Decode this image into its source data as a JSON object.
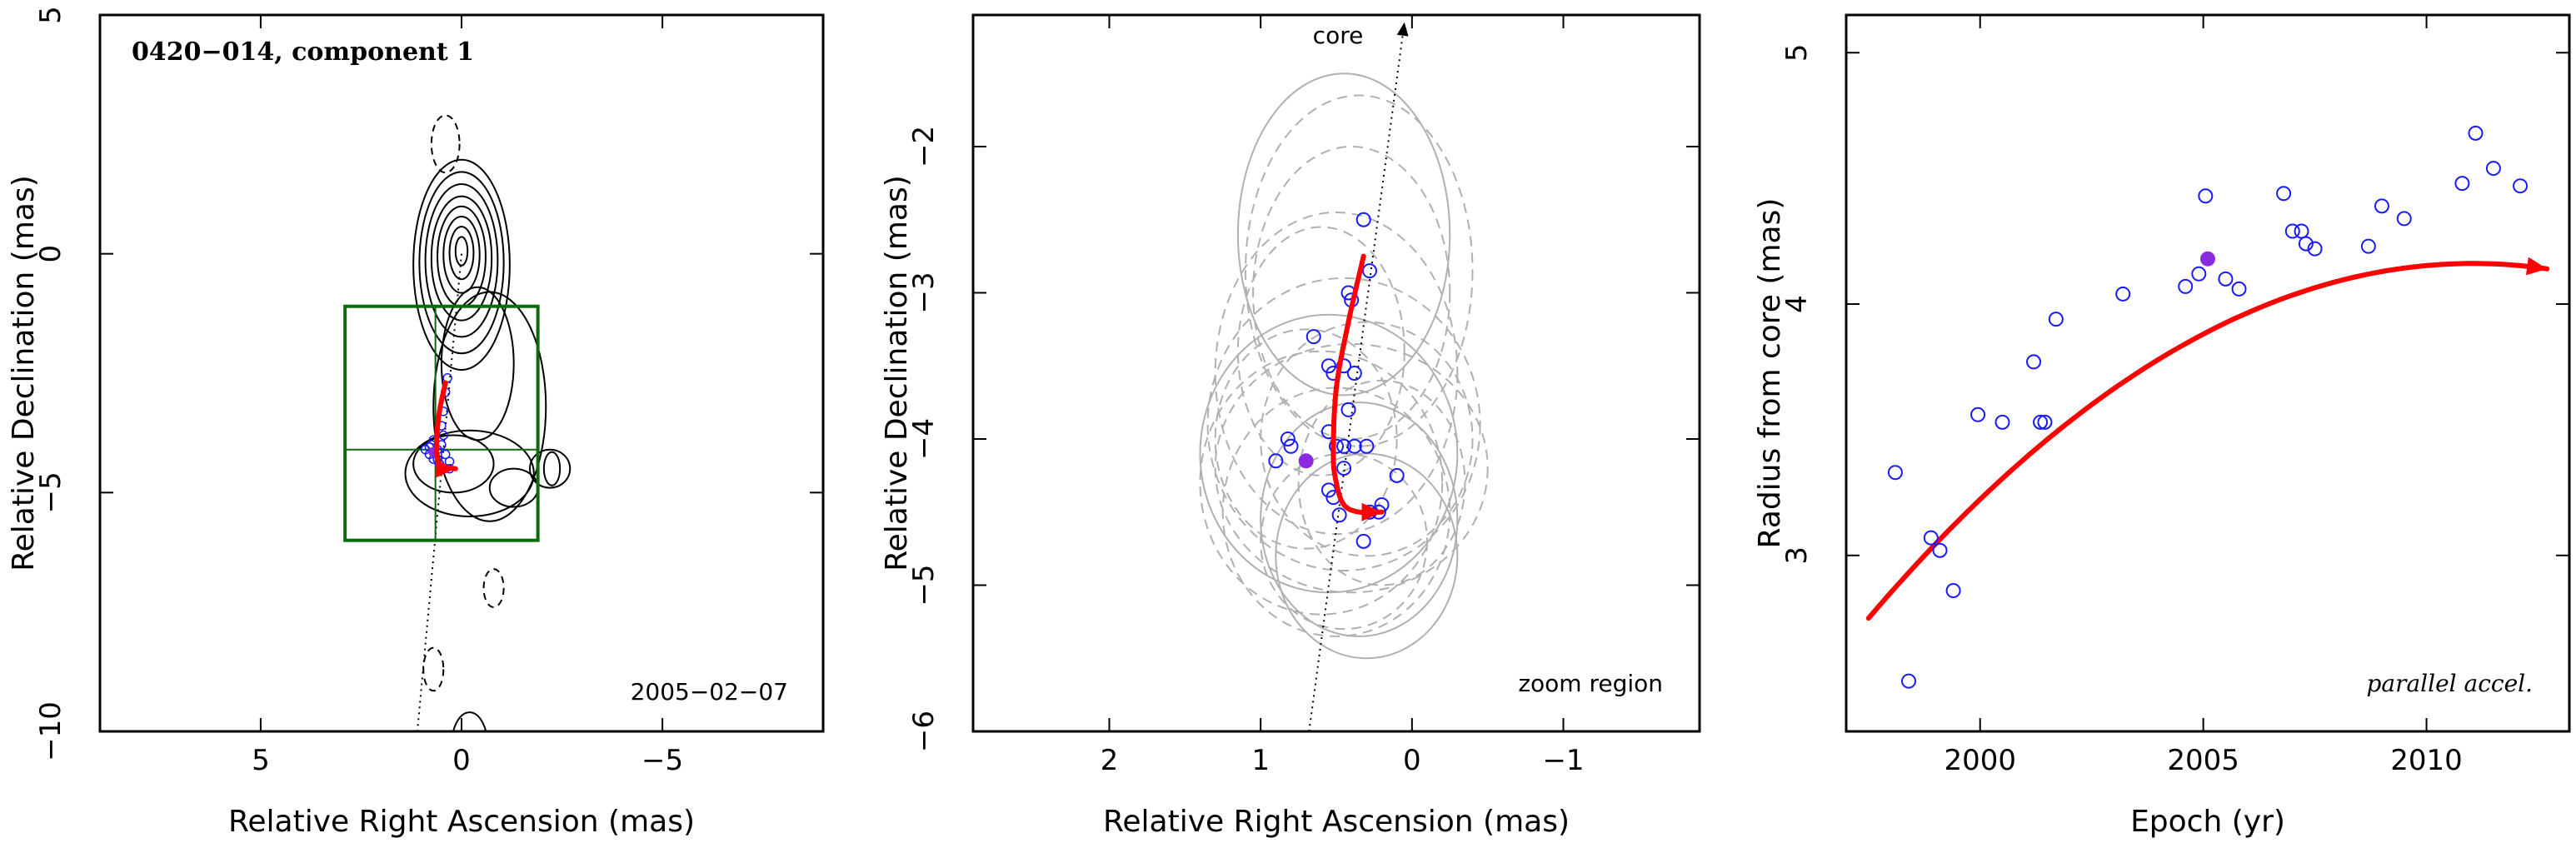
{
  "chart_data": [
    {
      "type": "scatter",
      "title": "0420−014, component 1",
      "annotation": "2005−02−07",
      "xlabel": "Relative Right Ascension (mas)",
      "ylabel": "Relative Declination (mas)",
      "xlim": [
        9,
        -9
      ],
      "ylim": [
        -10,
        5
      ],
      "xticks": [
        5,
        0,
        -5
      ],
      "xtick_labels": [
        "5",
        "0",
        "−5"
      ],
      "yticks": [
        -10,
        -5,
        0,
        5
      ],
      "ytick_labels": [
        "−10",
        "−5",
        "0",
        "5"
      ],
      "contour_center": [
        0.0,
        0.1
      ],
      "contour_levels": [
        {
          "rx": 0.15,
          "ry": 0.3
        },
        {
          "rx": 0.3,
          "ry": 0.55
        },
        {
          "rx": 0.45,
          "ry": 0.8
        },
        {
          "rx": 0.6,
          "ry": 1.05
        },
        {
          "rx": 0.75,
          "ry": 1.3
        },
        {
          "rx": 0.9,
          "ry": 1.6
        },
        {
          "rx": 1.05,
          "ry": 1.9
        },
        {
          "rx": 1.2,
          "ry": 2.2
        }
      ],
      "jet_contours": [
        {
          "cx": -0.4,
          "cy": -2.3,
          "rx": 0.9,
          "ry": 1.6
        },
        {
          "cx": -0.7,
          "cy": -3.2,
          "rx": 1.4,
          "ry": 2.4
        }
      ],
      "lower_contours": [
        {
          "cx": -0.2,
          "cy": -4.6,
          "rx": 1.6,
          "ry": 0.9
        },
        {
          "cx": 0.2,
          "cy": -4.4,
          "rx": 1.0,
          "ry": 0.6
        },
        {
          "cx": -1.3,
          "cy": -4.9,
          "rx": 0.6,
          "ry": 0.4
        },
        {
          "cx": -2.2,
          "cy": -4.5,
          "rx": 0.5,
          "ry": 0.4
        },
        {
          "cx": -2.25,
          "cy": -4.5,
          "rx": 0.2,
          "ry": 0.35
        }
      ],
      "negative_contours": [
        {
          "cx": 0.4,
          "cy": 2.3,
          "rx": 0.35,
          "ry": 0.6
        },
        {
          "cx": -0.8,
          "cy": -7.0,
          "rx": 0.25,
          "ry": 0.4
        },
        {
          "cx": 0.7,
          "cy": -8.7,
          "rx": 0.25,
          "ry": 0.45
        }
      ],
      "positive_edge_contour": {
        "cx": -0.2,
        "cy": -10.3,
        "rx": 0.45,
        "ry": 0.7
      },
      "zoom_box": {
        "x": [
          2.9,
          -1.9
        ],
        "y": [
          -6.0,
          -1.1
        ],
        "cross_x": 0.65,
        "cross_y": -4.1
      },
      "core_line": [
        [
          0.0,
          0.0
        ],
        [
          1.1,
          -10.0
        ]
      ],
      "points_x": [
        0.9,
        0.8,
        0.75,
        0.7,
        0.6,
        0.55,
        0.5,
        0.45,
        0.4,
        0.35,
        0.3,
        0.5,
        0.6,
        0.7,
        0.4,
        0.3,
        0.8,
        0.45
      ],
      "points_y": [
        -4.1,
        -4.2,
        -4.0,
        -4.3,
        -4.1,
        -4.4,
        -3.6,
        -3.3,
        -2.9,
        -2.6,
        -4.5,
        -4.0,
        -4.3,
        -3.9,
        -4.2,
        -4.35,
        -4.05,
        -3.8
      ],
      "highlight_point": [
        0.7,
        -4.15
      ],
      "track": [
        [
          0.4,
          -2.7
        ],
        [
          0.55,
          -3.3
        ],
        [
          0.62,
          -3.9
        ],
        [
          0.6,
          -4.3
        ],
        [
          0.45,
          -4.45
        ],
        [
          0.15,
          -4.5
        ]
      ],
      "colors": {
        "track": "#ff0000",
        "points": "#1a1aff",
        "highlight": "#8a2be2",
        "box": "#0a6b0a"
      }
    },
    {
      "type": "scatter",
      "annotation_top": "core",
      "annotation": "zoom region",
      "xlabel": "Relative Right Ascension (mas)",
      "ylabel": "Relative Declination (mas)",
      "xlim": [
        2.9,
        -1.9
      ],
      "ylim": [
        -6.0,
        -1.1
      ],
      "xticks": [
        2,
        1,
        0,
        -1
      ],
      "xtick_labels": [
        "2",
        "1",
        "0",
        "−1"
      ],
      "yticks": [
        -6,
        -5,
        -4,
        -3,
        -2
      ],
      "ytick_labels": [
        "−6",
        "−5",
        "−4",
        "−3",
        "−2"
      ],
      "core_line": [
        [
          0.68,
          -6.0
        ],
        [
          0.05,
          -1.15
        ]
      ],
      "error_ellipses": [
        {
          "cx": 0.45,
          "cy": -2.6,
          "rx": 0.7,
          "ry": 1.1
        },
        {
          "cx": 0.4,
          "cy": -3.0,
          "rx": 0.65,
          "ry": 1.0
        },
        {
          "cx": 0.35,
          "cy": -2.85,
          "rx": 0.75,
          "ry": 1.2
        },
        {
          "cx": 0.5,
          "cy": -3.55,
          "rx": 0.8,
          "ry": 1.1
        },
        {
          "cx": 0.45,
          "cy": -3.9,
          "rx": 0.9,
          "ry": 1.0
        },
        {
          "cx": 0.55,
          "cy": -4.1,
          "rx": 0.85,
          "ry": 0.95
        },
        {
          "cx": 0.6,
          "cy": -4.3,
          "rx": 0.8,
          "ry": 0.9
        },
        {
          "cx": 0.4,
          "cy": -4.2,
          "rx": 0.9,
          "ry": 0.85
        },
        {
          "cx": 0.3,
          "cy": -4.0,
          "rx": 0.7,
          "ry": 0.8
        },
        {
          "cx": 0.5,
          "cy": -4.5,
          "rx": 0.75,
          "ry": 0.85
        },
        {
          "cx": 0.35,
          "cy": -4.55,
          "rx": 0.65,
          "ry": 0.8
        },
        {
          "cx": 0.6,
          "cy": -3.4,
          "rx": 0.55,
          "ry": 0.85
        },
        {
          "cx": 0.2,
          "cy": -4.3,
          "rx": 0.55,
          "ry": 0.7
        },
        {
          "cx": 0.7,
          "cy": -4.0,
          "rx": 0.6,
          "ry": 0.75
        },
        {
          "cx": 0.45,
          "cy": -4.7,
          "rx": 0.55,
          "ry": 0.6
        },
        {
          "cx": 0.3,
          "cy": -4.8,
          "rx": 0.6,
          "ry": 0.7
        }
      ],
      "points_x": [
        0.32,
        0.28,
        0.4,
        0.42,
        0.65,
        0.55,
        0.52,
        0.45,
        0.38,
        0.42,
        0.5,
        0.45,
        0.38,
        0.3,
        0.55,
        0.52,
        0.48,
        0.28,
        0.22,
        0.2,
        0.1,
        0.32,
        0.45,
        0.55,
        0.9,
        0.82,
        0.8
      ],
      "points_y": [
        -2.5,
        -2.85,
        -3.05,
        -3.0,
        -3.3,
        -3.5,
        -3.55,
        -3.5,
        -3.55,
        -3.8,
        -4.05,
        -4.05,
        -4.05,
        -4.05,
        -4.35,
        -4.4,
        -4.52,
        -4.5,
        -4.5,
        -4.45,
        -4.25,
        -4.7,
        -4.2,
        -3.95,
        -4.15,
        -4.0,
        -4.05
      ],
      "highlight_point": [
        0.7,
        -4.15
      ],
      "track": [
        [
          0.32,
          -2.75
        ],
        [
          0.42,
          -3.2
        ],
        [
          0.5,
          -3.65
        ],
        [
          0.52,
          -4.1
        ],
        [
          0.5,
          -4.3
        ],
        [
          0.45,
          -4.45
        ],
        [
          0.35,
          -4.5
        ],
        [
          0.2,
          -4.5
        ]
      ],
      "colors": {
        "track": "#ff0000",
        "points": "#1a1aff",
        "highlight": "#8a2be2",
        "ellipse": "#b0b0b0"
      }
    },
    {
      "type": "scatter",
      "annotation": "parallel accel.",
      "xlabel": "Epoch (yr)",
      "ylabel": "Radius from core (mas)",
      "xlim": [
        1997,
        2013.2
      ],
      "ylim": [
        2.3,
        5.15
      ],
      "xticks": [
        2000,
        2005,
        2010
      ],
      "xtick_labels": [
        "2000",
        "2005",
        "2010"
      ],
      "yticks": [
        3,
        4,
        5
      ],
      "ytick_labels": [
        "3",
        "4",
        "5"
      ],
      "points_x": [
        1998.1,
        1998.4,
        1998.9,
        1999.1,
        1999.4,
        1999.95,
        2000.5,
        2001.2,
        2001.35,
        2001.45,
        2001.7,
        2003.2,
        2004.6,
        2004.9,
        2005.05,
        2005.5,
        2005.8,
        2006.8,
        2007.0,
        2007.2,
        2007.3,
        2007.5,
        2008.7,
        2009.0,
        2009.5,
        2010.8,
        2011.1,
        2011.5,
        2012.1
      ],
      "points_y": [
        3.33,
        2.5,
        3.07,
        3.02,
        2.86,
        3.56,
        3.53,
        3.77,
        3.53,
        3.53,
        3.94,
        4.04,
        4.07,
        4.12,
        4.43,
        4.1,
        4.06,
        4.44,
        4.29,
        4.29,
        4.24,
        4.22,
        4.23,
        4.39,
        4.34,
        4.48,
        4.68,
        4.54,
        4.47
      ],
      "highlight_point": [
        2005.1,
        4.18
      ],
      "fit_curve": {
        "x0": 1997.5,
        "x1": 2012.8,
        "a": -0.0077,
        "b": 0.2085,
        "c": 2.75,
        "ref": 1997.5
      },
      "colors": {
        "track": "#ff0000",
        "points": "#1a1aff",
        "highlight": "#8a2be2"
      }
    }
  ]
}
